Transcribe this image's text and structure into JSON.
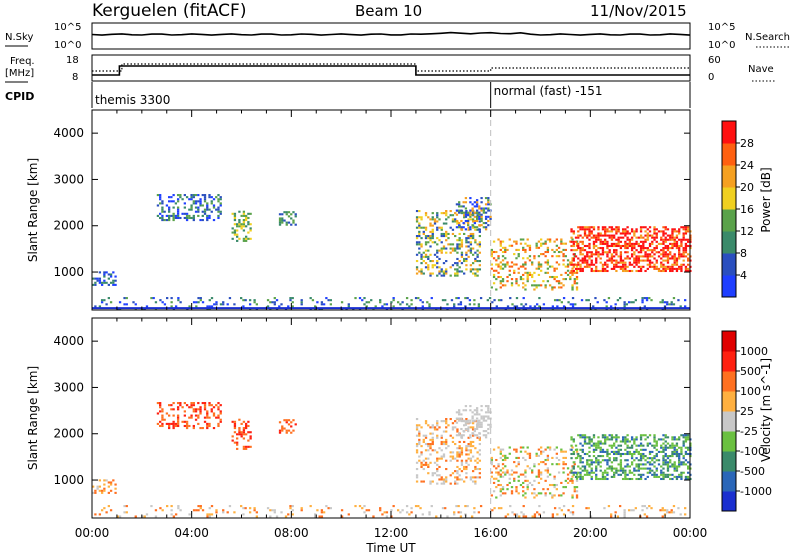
{
  "header": {
    "station": "Kerguelen (fitACF)",
    "beam": "Beam 10",
    "date": "11/Nov/2015"
  },
  "noise_panel": {
    "left_label": "N.Sky",
    "right_label": "N.Search",
    "left_ticks": [
      "10^5",
      "10^0"
    ],
    "right_ticks": [
      "10^5",
      "10^0"
    ]
  },
  "freq_panel": {
    "left_label_1": "Freq.",
    "left_label_2": "[MHz]",
    "right_label": "Nave",
    "left_ticks": [
      "18",
      "8"
    ],
    "right_ticks": [
      "60",
      "0"
    ]
  },
  "cpid_panel": {
    "label": "CPID",
    "modes": [
      {
        "name": "themis 3300",
        "start_hour": 0
      },
      {
        "name": "normal (fast) -151",
        "start_hour": 16
      }
    ]
  },
  "chart_data": [
    {
      "type": "heatmap",
      "title": "Power",
      "xlabel": "Time UT",
      "ylabel": "Slant Range [km]",
      "x_ticks": [
        "00:00",
        "04:00",
        "08:00",
        "12:00",
        "16:00",
        "20:00",
        "00:00"
      ],
      "xlim_hours": [
        0,
        24
      ],
      "y_ticks": [
        1000,
        2000,
        3000,
        4000
      ],
      "ylim_km": [
        180,
        4500
      ],
      "colorbar": {
        "label": "Power [dB]",
        "ticks": [
          "4",
          "8",
          "12",
          "16",
          "20",
          "24",
          "28"
        ],
        "colors": [
          "#1f3fff",
          "#2a4fbf",
          "#3a8a6a",
          "#5aa24a",
          "#f0d020",
          "#f5a020",
          "#ff6010",
          "#ff1010"
        ]
      }
    },
    {
      "type": "heatmap",
      "title": "Velocity",
      "xlabel": "Time UT",
      "ylabel": "Slant Range [km]",
      "x_ticks": [
        "00:00",
        "04:00",
        "08:00",
        "12:00",
        "16:00",
        "20:00",
        "00:00"
      ],
      "xlim_hours": [
        0,
        24
      ],
      "y_ticks": [
        1000,
        2000,
        3000,
        4000
      ],
      "ylim_km": [
        180,
        4500
      ],
      "colorbar": {
        "label": "Velocity  [m s^-1]",
        "ticks": [
          "1000",
          "500",
          "100",
          "25",
          "-25",
          "-100",
          "-500",
          "-1000"
        ],
        "colors": [
          "#1a2fd0",
          "#2a66b8",
          "#3a8a6a",
          "#6ac040",
          "#c8c8c8",
          "#ffb040",
          "#ff7020",
          "#ff2010",
          "#e00000"
        ]
      }
    }
  ],
  "colors": {
    "background": "#ffffff",
    "axis": "#000000",
    "ground_scatter": "#b4b4b4",
    "cpid_divider": "#bfbfbf"
  }
}
